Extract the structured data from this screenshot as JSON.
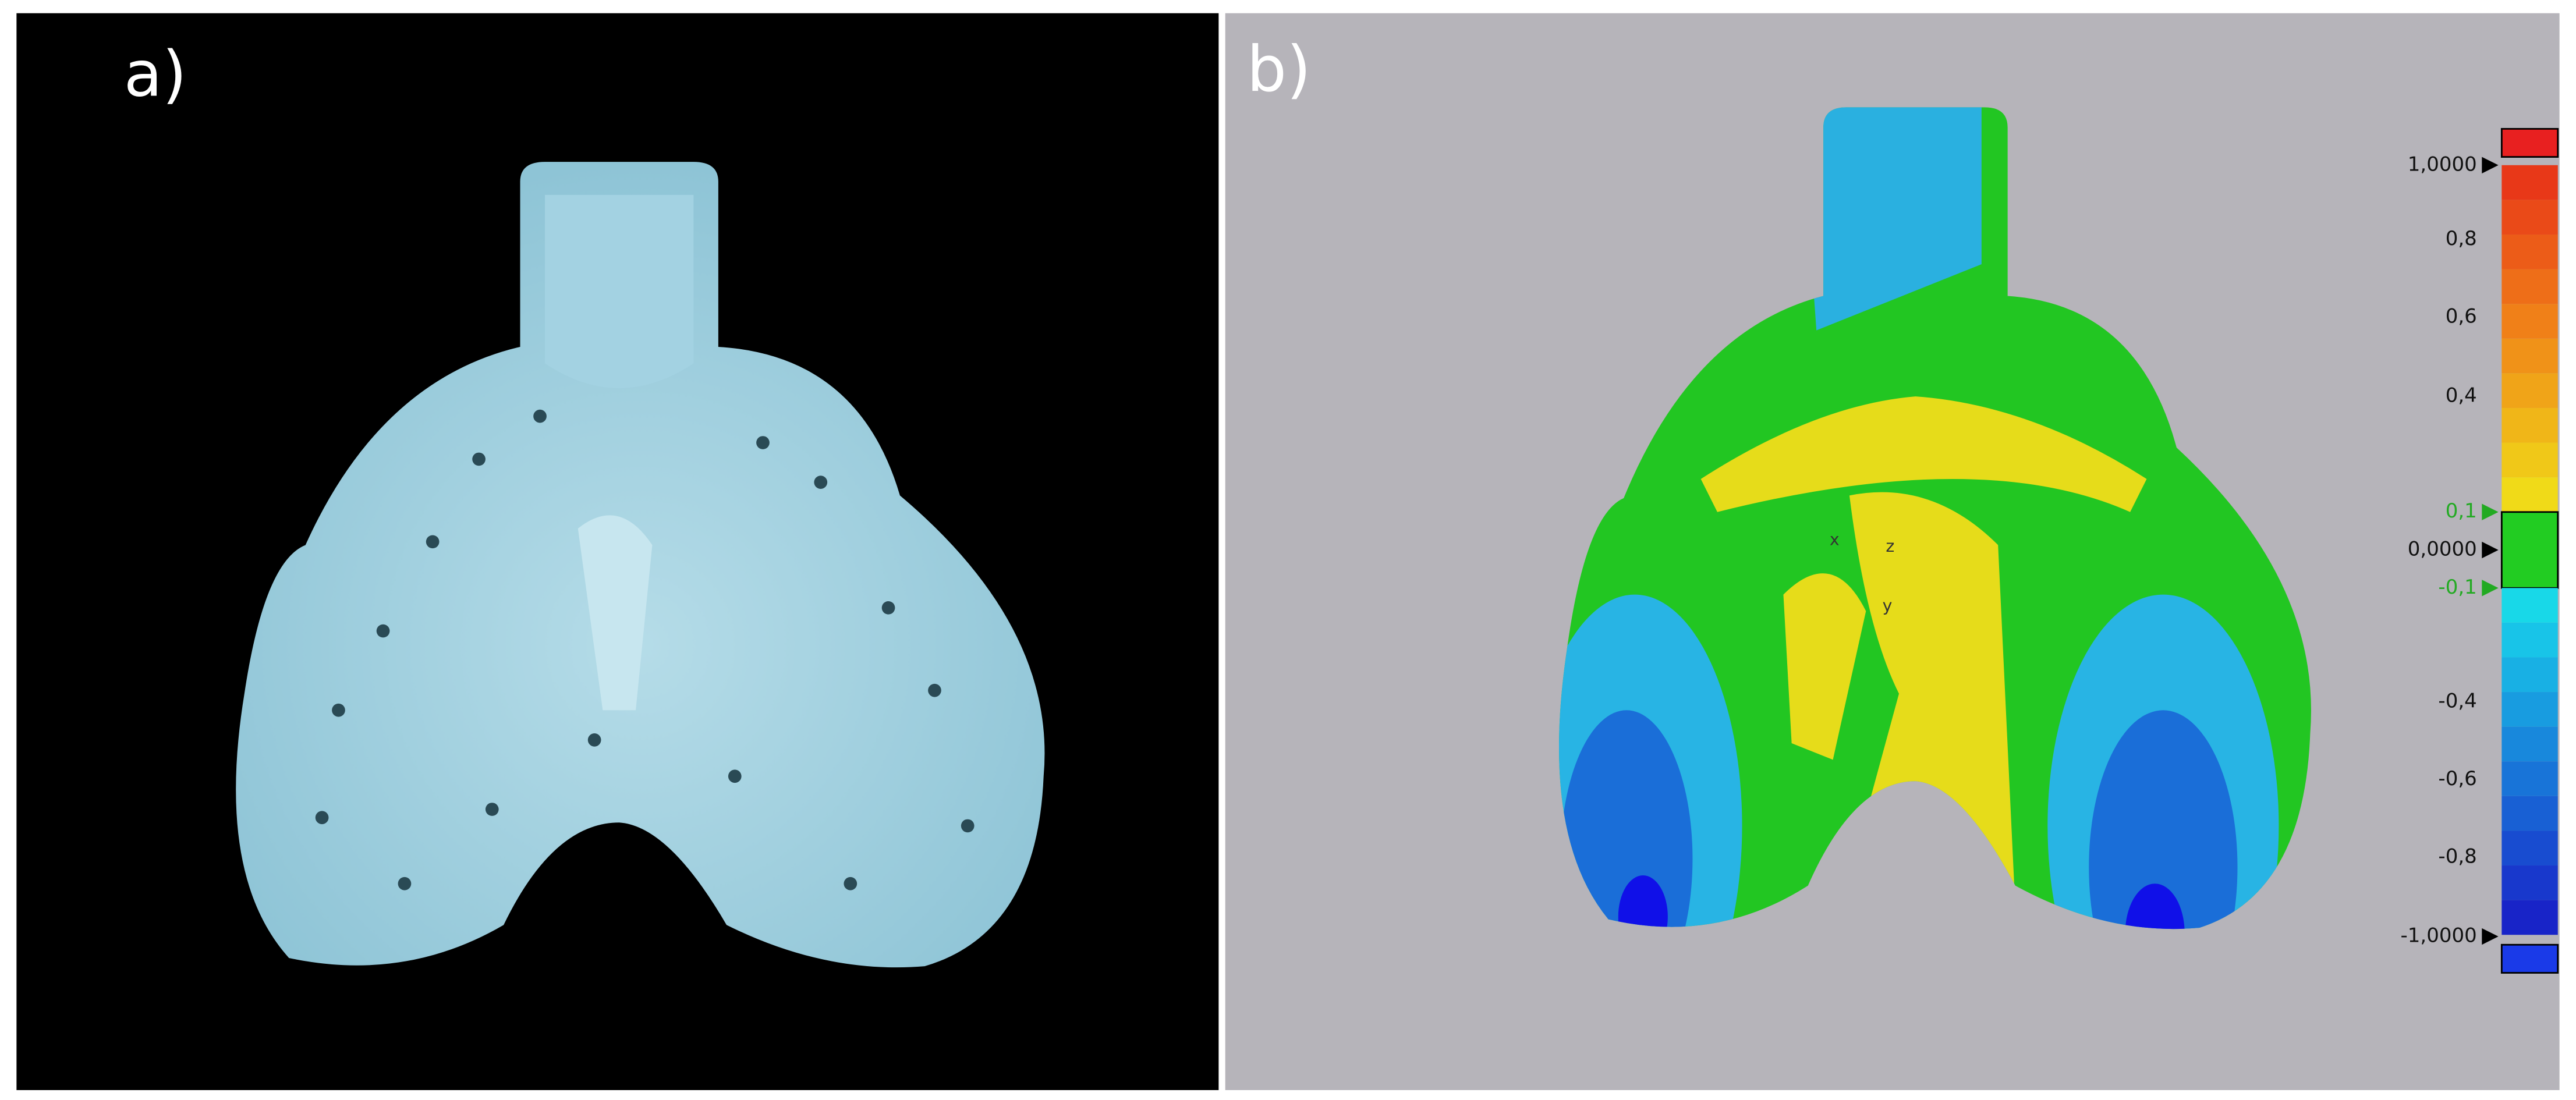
{
  "panels": [
    {
      "label": "a)"
    },
    {
      "label": "b)",
      "scale": {
        "labels": [
          "1,0000",
          "0,8",
          "0,6",
          "0,4",
          "0,1",
          "0,0000",
          "-0,1",
          "-0,4",
          "-0,6",
          "-0,8",
          "-1,0000"
        ]
      },
      "axes": [
        "x",
        "z",
        "y"
      ]
    }
  ]
}
